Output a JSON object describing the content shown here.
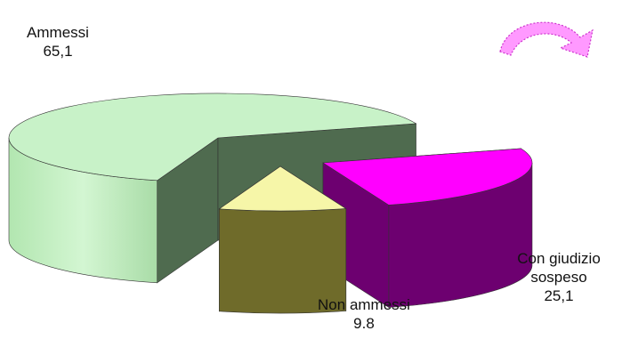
{
  "chart_data": {
    "type": "pie",
    "style": "3d-exploded",
    "slices": [
      {
        "label": "Ammessi",
        "value": 65.1,
        "value_text": "65,1",
        "color": "#c8f2c8",
        "side_color": "#c5ecc3",
        "cut_color": "#4f6b4f",
        "exploded": false
      },
      {
        "label": "Con giudizio sospeso",
        "value": 25.1,
        "value_text": "25,1",
        "color": "#ff00ff",
        "side_color": "#6d0070",
        "cut_color": "#6d0070",
        "exploded": true
      },
      {
        "label": "Non ammessi",
        "value": 9.8,
        "value_text": "9.8",
        "color": "#f6f6a8",
        "side_color": "#6f6b2a",
        "cut_color": "#6f6b2a",
        "exploded": true
      }
    ]
  },
  "labels": {
    "ammessi_name": "Ammessi",
    "ammessi_value": "65,1",
    "giudizio_line1": "Con giudizio",
    "giudizio_line2": "sospeso",
    "giudizio_value": "25,1",
    "non_ammessi_name": "Non ammessi",
    "non_ammessi_value": "9.8"
  },
  "decoration": {
    "arrow_icon": "curved-arrow-icon",
    "arrow_color": "#ff99ff",
    "arrow_stroke": "#cc33cc"
  }
}
